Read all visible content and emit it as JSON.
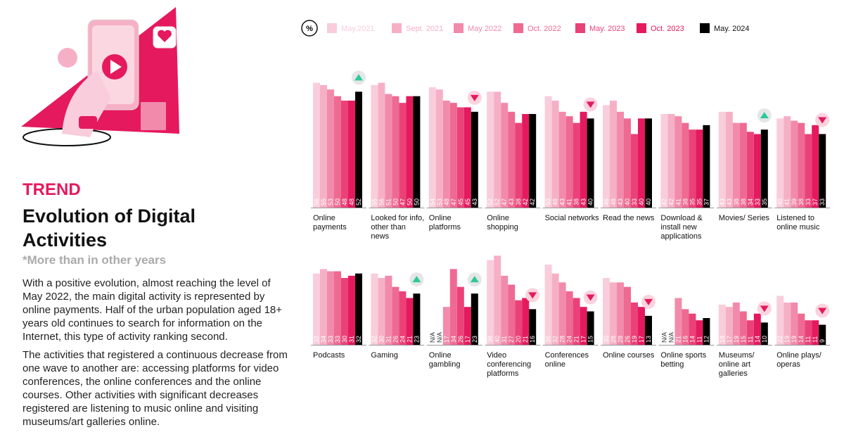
{
  "header": {
    "kicker": "TREND",
    "title": "Evolution of Digital Activities",
    "subtitle": "*More than in other years"
  },
  "paragraphs": [
    "With a positive evolution, almost reaching the level of May 2022, the main digital activity is represented by online payments. Half of the urban population aged 18+ years old continues to search for information on the Internet, this type of activity ranking second.",
    "The activities that registered a continuous decrease from one wave to another are: accessing platforms for video conferences, the online conferences and the online courses. Other activities with significant decreases registered are listening to music online and visiting museums/art galleries online."
  ],
  "chart_data": {
    "type": "bar",
    "unit": "%",
    "missing_label": "N/A",
    "categories": [
      "Online payments",
      "Looked for info, other than news",
      "Online platforms",
      "Online shopping",
      "Social networks",
      "Read the news",
      "Download & install new applications",
      "Movies/ Series",
      "Listened to online music",
      "Podcasts",
      "Gaming",
      "Online gambling",
      "Video conferencing platforms",
      "Conferences online",
      "Online courses",
      "Online sports betting",
      "Museums/ online art galleries",
      "Online plays/ operas"
    ],
    "trend": [
      "up",
      null,
      "down",
      null,
      "down",
      null,
      null,
      "up",
      "down",
      null,
      "up",
      "up",
      "down",
      "down",
      "down",
      null,
      "down",
      "down"
    ],
    "ylim": [
      0,
      60
    ],
    "series": [
      {
        "name": "May.2021",
        "color": "#f9cddb",
        "values": [
          56,
          55,
          54,
          52,
          50,
          46,
          42,
          43,
          40,
          32,
          32,
          null,
          38,
          36,
          30,
          null,
          18,
          22
        ]
      },
      {
        "name": "Sept. 2021",
        "color": "#f6b0c6",
        "values": [
          55,
          56,
          53,
          52,
          48,
          48,
          42,
          43,
          41,
          34,
          30,
          null,
          40,
          32,
          28,
          null,
          17,
          19
        ]
      },
      {
        "name": "May 2022",
        "color": "#f28bab",
        "values": [
          53,
          51,
          48,
          47,
          43,
          43,
          41,
          38,
          39,
          33,
          31,
          17,
          31,
          28,
          28,
          21,
          19,
          19
        ]
      },
      {
        "name": "Oct. 2022",
        "color": "#ee6a92",
        "values": [
          50,
          50,
          47,
          43,
          41,
          40,
          38,
          38,
          38,
          33,
          26,
          34,
          27,
          24,
          26,
          16,
          15,
          14
        ]
      },
      {
        "name": "May. 2023",
        "color": "#ea4278",
        "values": [
          48,
          47,
          45,
          38,
          38,
          33,
          35,
          34,
          33,
          30,
          24,
          26,
          20,
          21,
          19,
          14,
          11,
          11
        ]
      },
      {
        "name": "Oct. 2023",
        "color": "#e5195e",
        "values": [
          48,
          50,
          45,
          42,
          43,
          40,
          35,
          33,
          37,
          31,
          21,
          17,
          21,
          17,
          17,
          11,
          14,
          11
        ]
      },
      {
        "name": "May. 2024",
        "color": "#000000",
        "values": [
          52,
          50,
          43,
          42,
          40,
          40,
          37,
          35,
          33,
          32,
          23,
          23,
          16,
          15,
          13,
          12,
          10,
          9
        ]
      }
    ]
  }
}
